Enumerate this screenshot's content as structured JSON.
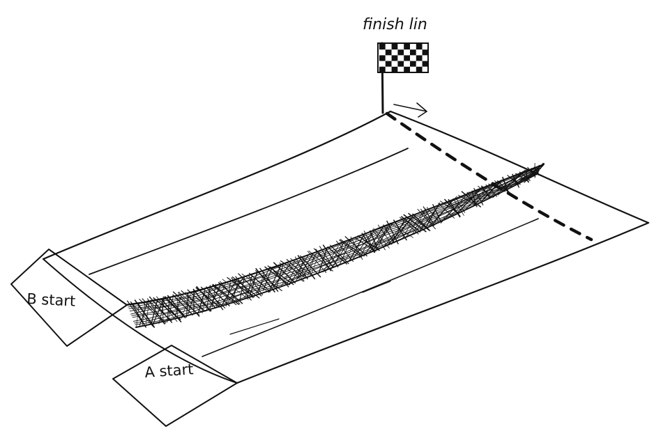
{
  "labels": {
    "finish": "finish lin",
    "b_start": "B start",
    "a_start": "A start"
  },
  "flag": {
    "color_dark": "#111111",
    "color_light": "#ffffff",
    "pattern": "checkered"
  },
  "colors": {
    "ink": "#111111",
    "paper": "#ffffff"
  }
}
